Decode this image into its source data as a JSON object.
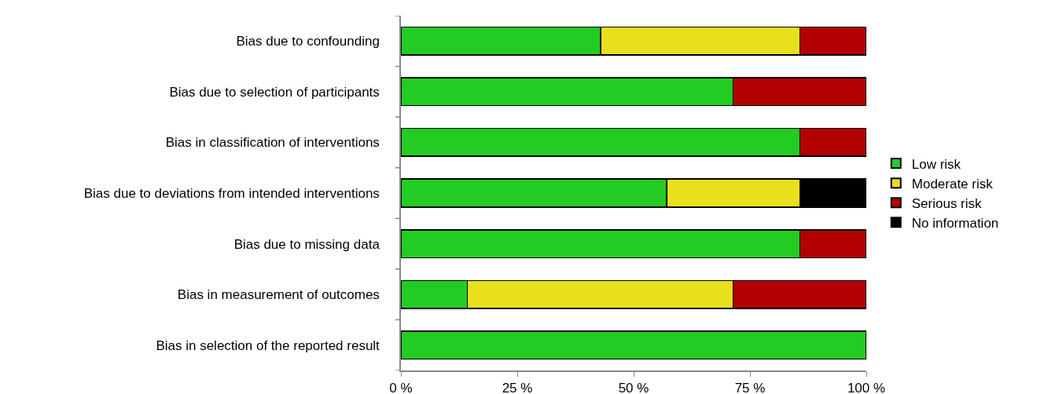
{
  "chart_data": {
    "type": "bar",
    "orientation": "horizontal",
    "stacked": true,
    "grid": false,
    "legend": "right",
    "categories": [
      "Bias due to confounding",
      "Bias due to selection of participants",
      "Bias in classification of interventions",
      "Bias due to deviations from intended interventions",
      "Bias due to missing data",
      "Bias in measurement of outcomes",
      "Bias in selection of the reported result"
    ],
    "series": [
      {
        "name": "Low risk",
        "color": "#22cc22",
        "values": [
          42.9,
          71.4,
          85.7,
          57.1,
          85.7,
          14.3,
          100
        ]
      },
      {
        "name": "Moderate risk",
        "color": "#e8e01c",
        "values": [
          42.8,
          null,
          null,
          28.6,
          null,
          57.1,
          null
        ]
      },
      {
        "name": "Serious risk",
        "color": "#b30000",
        "values": [
          14.3,
          28.6,
          14.3,
          null,
          14.3,
          28.6,
          null
        ]
      },
      {
        "name": "No information",
        "color": "#000000",
        "values": [
          null,
          null,
          null,
          14.3,
          null,
          null,
          null
        ]
      }
    ],
    "xlim": [
      0,
      100
    ],
    "xticks": [
      {
        "value": 0,
        "label": "0 %"
      },
      {
        "value": 25,
        "label": "25 %"
      },
      {
        "value": 50,
        "label": "50 %"
      },
      {
        "value": 75,
        "label": "75 %"
      },
      {
        "value": 100,
        "label": "100 %"
      }
    ]
  }
}
